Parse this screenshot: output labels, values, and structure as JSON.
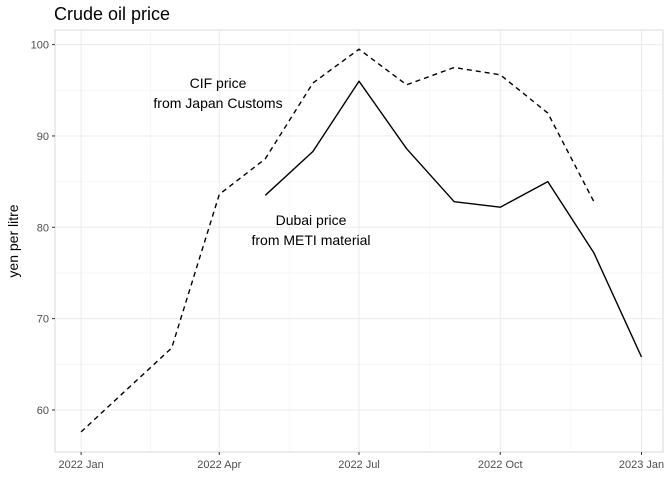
{
  "chart_data": {
    "type": "line",
    "title": "Crude oil price",
    "xlabel": "",
    "ylabel": "yen per litre",
    "x_ticks": [
      "2022 Jan",
      "2022 Apr",
      "2022 Jul",
      "2022 Oct",
      "2023 Jan"
    ],
    "y_ticks": [
      60,
      70,
      80,
      90,
      100
    ],
    "xlim": [
      "2021-12-15",
      "2023-01-15"
    ],
    "ylim": [
      55.4,
      101.6
    ],
    "grid": true,
    "series": [
      {
        "label": "CIF price\nfrom Japan Customs",
        "line_style": "dashed",
        "color": "#000000",
        "points": [
          {
            "x": "2022-01-01",
            "y": 57.6
          },
          {
            "x": "2022-03-01",
            "y": 66.8
          },
          {
            "x": "2022-04-01",
            "y": 83.6
          },
          {
            "x": "2022-05-01",
            "y": 87.5
          },
          {
            "x": "2022-06-01",
            "y": 95.8
          },
          {
            "x": "2022-07-01",
            "y": 99.5
          },
          {
            "x": "2022-08-01",
            "y": 95.6
          },
          {
            "x": "2022-09-01",
            "y": 97.5
          },
          {
            "x": "2022-10-01",
            "y": 96.7
          },
          {
            "x": "2022-11-01",
            "y": 92.5
          },
          {
            "x": "2022-12-01",
            "y": 82.8
          }
        ]
      },
      {
        "label": "Dubai price\nfrom METI material",
        "line_style": "solid",
        "color": "#000000",
        "points": [
          {
            "x": "2022-05-01",
            "y": 83.5
          },
          {
            "x": "2022-06-01",
            "y": 88.3
          },
          {
            "x": "2022-07-01",
            "y": 96.0
          },
          {
            "x": "2022-08-01",
            "y": 88.6
          },
          {
            "x": "2022-09-01",
            "y": 82.8
          },
          {
            "x": "2022-10-01",
            "y": 82.2
          },
          {
            "x": "2022-11-01",
            "y": 85.0
          },
          {
            "x": "2022-12-01",
            "y": 77.2
          },
          {
            "x": "2023-01-01",
            "y": 65.8
          }
        ]
      }
    ],
    "annotations": [
      {
        "series": 0,
        "lines": [
          "CIF price",
          "from Japan Customs"
        ]
      },
      {
        "series": 1,
        "lines": [
          "Dubai price",
          "from METI material"
        ]
      }
    ]
  }
}
